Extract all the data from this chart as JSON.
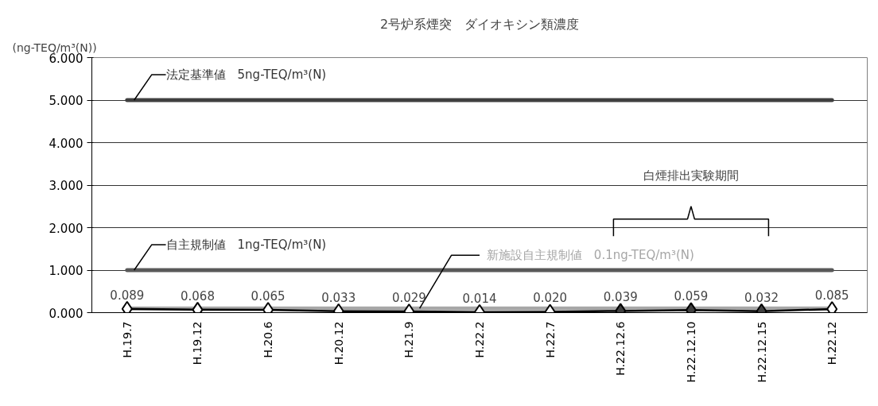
{
  "chart_data": {
    "type": "line",
    "title": "2号炉系煙突　ダイオキシン類濃度",
    "ylabel": "(ng-TEQ/m³(N))",
    "categories": [
      "H.19.7",
      "H.19.12",
      "H.20.6",
      "H.20.12",
      "H.21.9",
      "H.22.2",
      "H.22.7",
      "H.22.12.6",
      "H.22.12.10",
      "H.22.12.15",
      "H.22.12"
    ],
    "series": [
      {
        "color": "#000000",
        "values": [
          0.089,
          0.068,
          0.065,
          0.033,
          0.029,
          0.014,
          0.02,
          0.039,
          0.059,
          0.032,
          0.085
        ],
        "colors": [
          "#ffffff",
          "#ffffff",
          "#ffffff",
          "#ffffff",
          "#ffffff",
          "#ffffff",
          "#ffffff",
          "#404040",
          "#404040",
          "#404040",
          "#ffffff"
        ],
        "value_labels": [
          "0.089",
          "0.068",
          "0.065",
          "0.033",
          "0.029",
          "0.014",
          "0.020",
          "0.039",
          "0.059",
          "0.032",
          "0.085"
        ]
      }
    ],
    "ylim": [
      0,
      6
    ],
    "yticks": [
      {
        "value": 0,
        "label": "0.000"
      },
      {
        "value": 1,
        "label": "1.000"
      },
      {
        "value": 2,
        "label": "2.000"
      },
      {
        "value": 3,
        "label": "3.000"
      },
      {
        "value": 4,
        "label": "4.000"
      },
      {
        "value": 5,
        "label": "5.000"
      },
      {
        "value": 6,
        "label": "6.000"
      }
    ],
    "grid": "y",
    "marker": "diamond",
    "line_style": "solid",
    "ref_lines": [
      {
        "axis": "y",
        "value": 5,
        "label": "法定基準値　5ng-TEQ/m³(N)",
        "color": "#404040"
      },
      {
        "axis": "y",
        "value": 1,
        "label": "自主規制値　1ng-TEQ/m³(N)",
        "color": "#595959"
      },
      {
        "axis": "y",
        "value": 0.1,
        "label": "新施設自主規制値　0.1ng-TEQ/m³(N)",
        "color": "#a6a6a6"
      }
    ],
    "annotations": [
      "白煙排出実験期間"
    ]
  }
}
